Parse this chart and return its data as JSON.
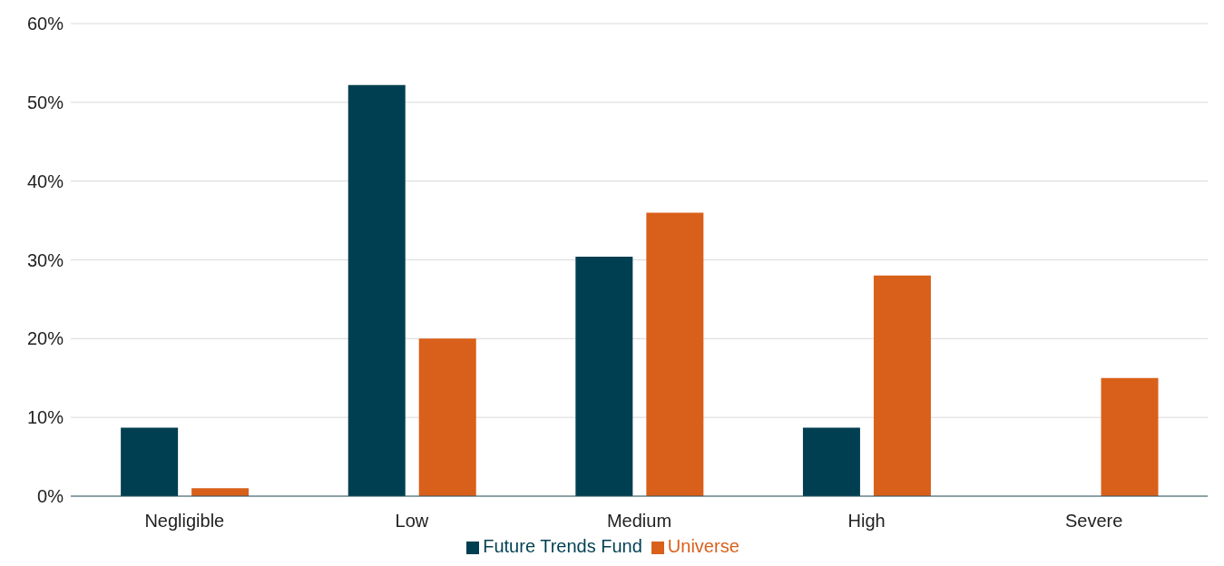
{
  "chart_data": {
    "type": "bar",
    "categories": [
      "Negligible",
      "Low",
      "Medium",
      "High",
      "Severe"
    ],
    "series": [
      {
        "name": "Future Trends Fund",
        "color": "#003f51",
        "values": [
          8.7,
          52.2,
          30.4,
          8.7,
          0
        ]
      },
      {
        "name": "Universe",
        "color": "#d9601a",
        "values": [
          1,
          20,
          36,
          28,
          15
        ]
      }
    ],
    "ylim": [
      0,
      60
    ],
    "yticks": [
      {
        "value": 0,
        "label": "0%"
      },
      {
        "value": 10,
        "label": "10%"
      },
      {
        "value": 20,
        "label": "20%"
      },
      {
        "value": 30,
        "label": "30%"
      },
      {
        "value": 40,
        "label": "40%"
      },
      {
        "value": 50,
        "label": "50%"
      },
      {
        "value": 60,
        "label": "60%"
      }
    ],
    "grid": "y",
    "legend": "bottom"
  }
}
